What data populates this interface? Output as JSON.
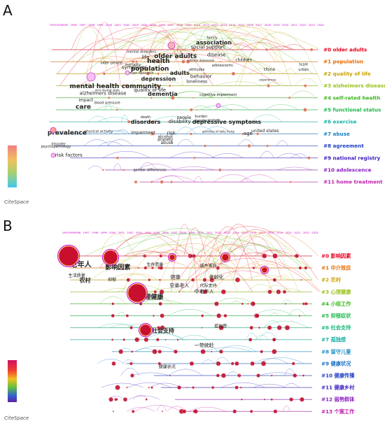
{
  "panels": {
    "a": {
      "tag": "A",
      "logo": "CiteSpace"
    },
    "b": {
      "tag": "B",
      "logo": "CiteSpace"
    }
  },
  "colors": {
    "axis_years": "#cc00cc",
    "cluster_a": [
      "#e8001c",
      "#e86a00",
      "#c9a300",
      "#99c21c",
      "#3cb81e",
      "#1db84a",
      "#17b0a4",
      "#1a80c4",
      "#2040c8",
      "#4020c0",
      "#8a20c0",
      "#c020b0"
    ],
    "cluster_b": [
      "#e8001c",
      "#e86a00",
      "#c9a300",
      "#99c21c",
      "#3cb81e",
      "#1db84a",
      "#1db87a",
      "#17b0a4",
      "#1a90c4",
      "#1a70c4",
      "#2040c8",
      "#4020c0",
      "#8a20c0",
      "#c020b0"
    ]
  },
  "chart_data": [
    {
      "type": "timeline",
      "panel": "A",
      "x": [
        "1993",
        "1995",
        "1996",
        "1997",
        "1998",
        "1999",
        "2000",
        "2001",
        "2002",
        "2003",
        "2004",
        "2005",
        "2006",
        "2007",
        "2008",
        "2009",
        "2010",
        "2011",
        "2012",
        "2013",
        "2014",
        "2015",
        "2016",
        "2017",
        "2018",
        "2019",
        "2020",
        "2021",
        "2022",
        "2023",
        "2024"
      ],
      "x_tick_labels": [
        "19931993",
        "1995",
        "1996",
        "1997",
        "1998",
        "1999",
        "2000",
        "2001",
        "2002",
        "2003",
        "2004",
        "2005",
        "2006",
        "2007",
        "2008",
        "2009",
        "2010",
        "2011",
        "2012",
        "2013",
        "2014",
        "2015",
        "2016",
        "2017",
        "2018",
        "2019",
        "2020",
        "2021",
        "2022",
        "2023",
        "2024"
      ],
      "clusters": [
        "#0 older adults",
        "#1 population",
        "#2 quality of life",
        "#3 alzheimers disease",
        "#4 self-rated health",
        "#5 functional status",
        "#6 exercise",
        "#7 abuse",
        "#8 agreement",
        "#9 national registry",
        "#10 adolescence",
        "#11 home treatment"
      ],
      "keywords": [
        {
          "text": "family",
          "x": 2011.3,
          "lane": -0.9,
          "size": 5
        },
        {
          "text": "association",
          "x": 2011.5,
          "lane": -0.45,
          "size": 8
        },
        {
          "text": "social support",
          "x": 2010.8,
          "lane": -0.1,
          "size": 7
        },
        {
          "text": "mental disorders",
          "x": 2003.0,
          "lane": 0.25,
          "size": 5
        },
        {
          "text": "older adults",
          "x": 2007.0,
          "lane": 0.7,
          "size": 9
        },
        {
          "text": "disease",
          "x": 2011.8,
          "lane": 0.55,
          "size": 7
        },
        {
          "text": "life",
          "x": 2003.5,
          "lane": 0.75,
          "size": 7
        },
        {
          "text": "health",
          "x": 2005.0,
          "lane": 1.1,
          "size": 9
        },
        {
          "text": "late life depression",
          "x": 2010.0,
          "lane": 1.0,
          "size": 4
        },
        {
          "text": "children",
          "x": 2015.0,
          "lane": 0.95,
          "size": 6
        },
        {
          "text": "scale",
          "x": 2022.0,
          "lane": 1.3,
          "size": 5
        },
        {
          "text": "older people",
          "x": 1999.5,
          "lane": 1.2,
          "size": 5
        },
        {
          "text": "mortality",
          "x": 2002.0,
          "lane": 1.35,
          "size": 5
        },
        {
          "text": "symptoms",
          "x": 2002.2,
          "lane": 1.6,
          "size": 7
        },
        {
          "text": "population",
          "x": 2004.0,
          "lane": 1.75,
          "size": 9
        },
        {
          "text": "adolescents",
          "x": 2012.5,
          "lane": 1.4,
          "size": 5
        },
        {
          "text": "attitudes",
          "x": 2009.5,
          "lane": 1.75,
          "size": 5
        },
        {
          "text": "china",
          "x": 2018.0,
          "lane": 1.75,
          "size": 6
        },
        {
          "text": "urban",
          "x": 2022.0,
          "lane": 1.75,
          "size": 5
        },
        {
          "text": "major depression",
          "x": 2003.0,
          "lane": 2.0,
          "size": 4
        },
        {
          "text": "adults",
          "x": 2007.5,
          "lane": 2.1,
          "size": 8
        },
        {
          "text": "behavior",
          "x": 2010.0,
          "lane": 2.35,
          "size": 7
        },
        {
          "text": "depression",
          "x": 2005.0,
          "lane": 2.6,
          "size": 8
        },
        {
          "text": "loneliness",
          "x": 2009.5,
          "lane": 2.75,
          "size": 6
        },
        {
          "text": "experiences",
          "x": 2017.8,
          "lane": 2.6,
          "size": 4
        },
        {
          "text": "mental health",
          "x": 1997.5,
          "lane": 3.2,
          "size": 9
        },
        {
          "text": "community",
          "x": 2003.0,
          "lane": 3.2,
          "size": 9
        },
        {
          "text": "quality of life",
          "x": 2004.0,
          "lane": 3.5,
          "size": 7
        },
        {
          "text": "mini mental state",
          "x": 1999.0,
          "lane": 3.45,
          "size": 4
        },
        {
          "text": "alzheimers disease",
          "x": 1998.5,
          "lane": 3.75,
          "size": 7
        },
        {
          "text": "dementia",
          "x": 2005.5,
          "lane": 3.85,
          "size": 8
        },
        {
          "text": "cognitive impairment",
          "x": 2012.0,
          "lane": 3.85,
          "size": 5
        },
        {
          "text": "impact",
          "x": 1996.5,
          "lane": 4.3,
          "size": 6
        },
        {
          "text": "blood pressure",
          "x": 1999.0,
          "lane": 4.5,
          "size": 5
        },
        {
          "text": "care",
          "x": 1996.2,
          "lane": 4.9,
          "size": 9
        },
        {
          "text": "death",
          "x": 2003.5,
          "lane": 5.7,
          "size": 5
        },
        {
          "text": "people",
          "x": 2008.0,
          "lane": 5.75,
          "size": 6
        },
        {
          "text": "burden",
          "x": 2010.0,
          "lane": 5.65,
          "size": 5
        },
        {
          "text": "gender",
          "x": 2010.0,
          "lane": 6.0,
          "size": 5
        },
        {
          "text": "women",
          "x": 2011.5,
          "lane": 5.95,
          "size": 5
        },
        {
          "text": "disorders",
          "x": 2003.5,
          "lane": 6.15,
          "size": 8
        },
        {
          "text": "disability",
          "x": 2007.5,
          "lane": 6.1,
          "size": 7
        },
        {
          "text": "depressive symptoms",
          "x": 2013.0,
          "lane": 6.15,
          "size": 8
        },
        {
          "text": "prevalence",
          "x": 1994.3,
          "lane": 7.05,
          "size": 9
        },
        {
          "text": "physical activity",
          "x": 1998.0,
          "lane": 6.9,
          "size": 5
        },
        {
          "text": "impairment",
          "x": 2003.2,
          "lane": 7.0,
          "size": 6
        },
        {
          "text": "risk",
          "x": 2006.5,
          "lane": 7.05,
          "size": 7
        },
        {
          "text": "activities of daily living",
          "x": 2012.0,
          "lane": 6.9,
          "size": 4
        },
        {
          "text": "united states",
          "x": 2017.5,
          "lane": 6.85,
          "size": 6
        },
        {
          "text": "age",
          "x": 2015.5,
          "lane": 7.1,
          "size": 7
        },
        {
          "text": "alcohol",
          "x": 2005.8,
          "lane": 7.35,
          "size": 6
        },
        {
          "text": "anxiety",
          "x": 2005.8,
          "lane": 7.6,
          "size": 6
        },
        {
          "text": "abuse",
          "x": 2006.0,
          "lane": 7.85,
          "size": 6
        },
        {
          "text": "disorder",
          "x": 1993.3,
          "lane": 7.95,
          "size": 5
        },
        {
          "text": "psychopathology",
          "x": 1993.0,
          "lane": 8.15,
          "size": 5
        },
        {
          "text": "risk factors",
          "x": 1994.5,
          "lane": 8.9,
          "size": 7
        },
        {
          "text": "gender differences",
          "x": 2004.0,
          "lane": 10.1,
          "size": 5
        }
      ]
    },
    {
      "type": "timeline",
      "panel": "B",
      "x": [
        "1993",
        "1995",
        "1996",
        "1997",
        "1998",
        "1999",
        "2000",
        "2001",
        "2002",
        "2003",
        "2004",
        "2005",
        "2006",
        "2007",
        "2008",
        "2009",
        "2010",
        "2011",
        "2012",
        "2013",
        "2014",
        "2015",
        "2016",
        "2017",
        "2018",
        "2019",
        "2020",
        "2021",
        "2022",
        "2023"
      ],
      "x_tick_labels": [
        "19931995",
        "1996",
        "1997",
        "1998",
        "1999",
        "2000",
        "2001",
        "2002",
        "2003",
        "2004",
        "2005",
        "2006",
        "2007",
        "2008",
        "2009",
        "2010",
        "2011",
        "2012",
        "2013",
        "2014",
        "2015",
        "2016",
        "2017",
        "2018",
        "2019",
        "2020",
        "2021",
        "2022",
        "2023"
      ],
      "clusters": [
        "#0 影响因素",
        "#1 中介效应",
        "#2 农村",
        "#3 心理健康",
        "#4 小组工作",
        "#5 抑郁症状",
        "#6 社会支持",
        "#7 孤独感",
        "#8 留守儿童",
        "#9 健康状况",
        "#10 健康传播",
        "#11 健康乡村",
        "#12 弱势群体",
        "#13 个案工作"
      ],
      "keywords": [
        {
          "text": "老年人",
          "x": 1994.5,
          "lane": 0.9,
          "size": 10
        },
        {
          "text": "影响因素",
          "x": 1999.0,
          "lane": 1.1,
          "size": 9
        },
        {
          "text": "生活质量",
          "x": 1994.0,
          "lane": 1.75,
          "size": 6
        },
        {
          "text": "农村",
          "x": 1995.0,
          "lane": 2.2,
          "size": 8
        },
        {
          "text": "抑郁",
          "x": 1998.3,
          "lane": 2.1,
          "size": 6
        },
        {
          "text": "生存质量",
          "x": 2003.5,
          "lane": 0.85,
          "size": 6
        },
        {
          "text": "健康",
          "x": 2006.0,
          "lane": 1.9,
          "size": 7
        },
        {
          "text": "空巢老人",
          "x": 2006.5,
          "lane": 2.6,
          "size": 7
        },
        {
          "text": "心理健康",
          "x": 2003.0,
          "lane": 3.6,
          "size": 9
        },
        {
          "text": "中老年人",
          "x": 2009.5,
          "lane": 3.1,
          "size": 7
        },
        {
          "text": "老龄化",
          "x": 2011.0,
          "lane": 1.9,
          "size": 7
        },
        {
          "text": "代际支持",
          "x": 2010.0,
          "lane": 2.6,
          "size": 6
        },
        {
          "text": "城乡差异",
          "x": 2010.0,
          "lane": 0.95,
          "size": 6
        },
        {
          "text": "社会支持",
          "x": 2004.5,
          "lane": 6.4,
          "size": 8
        },
        {
          "text": "一带统赶",
          "x": 2009.5,
          "lane": 7.6,
          "size": 7
        },
        {
          "text": "健康状况",
          "x": 2005.0,
          "lane": 9.4,
          "size": 6
        },
        {
          "text": "孤独感",
          "x": 2011.5,
          "lane": 6.0,
          "size": 6
        }
      ]
    }
  ]
}
